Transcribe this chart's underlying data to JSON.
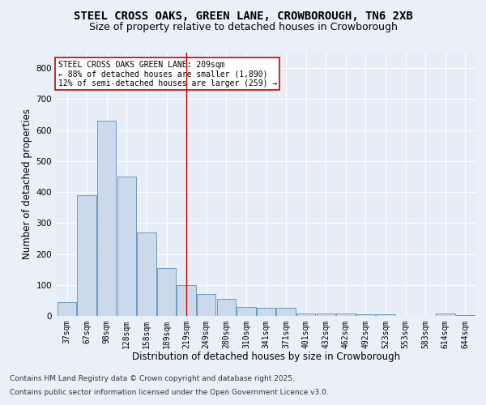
{
  "title_line1": "STEEL CROSS OAKS, GREEN LANE, CROWBOROUGH, TN6 2XB",
  "title_line2": "Size of property relative to detached houses in Crowborough",
  "xlabel": "Distribution of detached houses by size in Crowborough",
  "ylabel": "Number of detached properties",
  "categories": [
    "37sqm",
    "67sqm",
    "98sqm",
    "128sqm",
    "158sqm",
    "189sqm",
    "219sqm",
    "249sqm",
    "280sqm",
    "310sqm",
    "341sqm",
    "371sqm",
    "401sqm",
    "432sqm",
    "462sqm",
    "492sqm",
    "523sqm",
    "553sqm",
    "583sqm",
    "614sqm",
    "644sqm"
  ],
  "values": [
    45,
    390,
    630,
    450,
    270,
    155,
    100,
    70,
    55,
    28,
    25,
    25,
    8,
    8,
    8,
    5,
    5,
    0,
    0,
    8,
    3
  ],
  "bar_color": "#ccd9ea",
  "bar_edge_color": "#5b8db8",
  "vline_x": 6.0,
  "vline_color": "#cc0000",
  "annotation_text": "STEEL CROSS OAKS GREEN LANE: 209sqm\n← 88% of detached houses are smaller (1,890)\n12% of semi-detached houses are larger (259) →",
  "annotation_box_color": "#ffffff",
  "annotation_box_edge": "#cc0000",
  "ylim": [
    0,
    850
  ],
  "yticks": [
    0,
    100,
    200,
    300,
    400,
    500,
    600,
    700,
    800
  ],
  "footnote1": "Contains HM Land Registry data © Crown copyright and database right 2025.",
  "footnote2": "Contains public sector information licensed under the Open Government Licence v3.0.",
  "bg_color": "#eaf0f8",
  "plot_bg_color": "#e8eef8",
  "grid_color": "#ffffff",
  "title_fontsize": 10,
  "subtitle_fontsize": 9,
  "axis_label_fontsize": 8.5,
  "tick_fontsize": 7,
  "footnote_fontsize": 6.5
}
